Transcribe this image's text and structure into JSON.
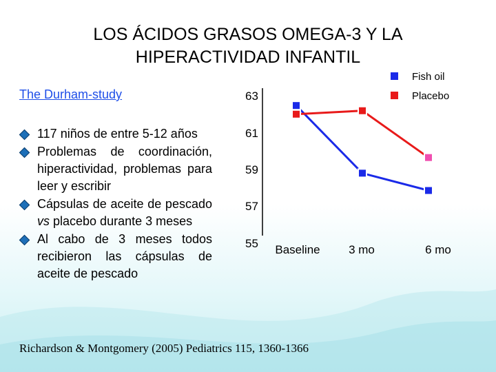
{
  "slide": {
    "title_line1": "LOS ÁCIDOS GRASOS OMEGA-3 Y LA",
    "title_line2": "HIPERACTIVIDAD INFANTIL",
    "study_link": "The Durham-study",
    "bullets": [
      "117 niños de entre 5-12 años",
      "Problemas de coordinación, hiperactividad, problemas para leer y escribir",
      "Cápsulas de aceite de pescado vs placebo durante 3 meses",
      "Al cabo de 3 meses todos recibieron las cápsulas de aceite de pescado"
    ],
    "bullet2_vs": "vs",
    "citation": "Richardson & Montgomery (2005) Pediatrics 115, 1360-1366",
    "colors": {
      "title": "#000000",
      "link": "#1f4fe8",
      "fish_oil": "#1a2ae8",
      "placebo": "#e81a1a",
      "highlight_point": "#f04fb0"
    }
  },
  "chart_data": {
    "type": "line",
    "categories": [
      "Baseline",
      "3 mo",
      "6 mo"
    ],
    "yticks": [
      "63",
      "61",
      "59",
      "57",
      "55"
    ],
    "ylim": [
      55,
      63.5
    ],
    "series": [
      {
        "name": "Fish oil",
        "values": [
          62.5,
          58.6,
          57.6
        ]
      },
      {
        "name": "Placebo",
        "values": [
          62.0,
          62.2,
          59.5
        ]
      }
    ],
    "legend_position": "top-right"
  }
}
